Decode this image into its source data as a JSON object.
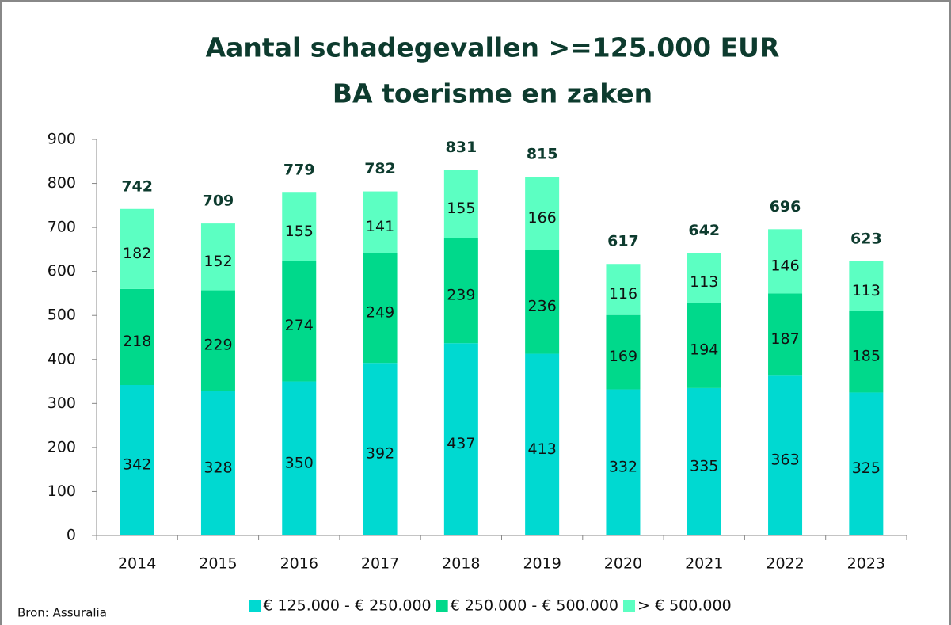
{
  "chart_data": {
    "type": "stacked_bar",
    "title": "Aantal schadegevallen >=125.000 EUR",
    "subtitle": "BA toerisme en zaken",
    "source": "Bron: Assuralia",
    "categories": [
      "2014",
      "2015",
      "2016",
      "2017",
      "2018",
      "2019",
      "2020",
      "2021",
      "2022",
      "2023"
    ],
    "series": [
      {
        "name": "€ 125.000 - € 250.000",
        "color": "#00d9d1",
        "values": [
          342,
          328,
          350,
          392,
          437,
          413,
          332,
          335,
          363,
          325
        ]
      },
      {
        "name": "€ 250.000 - € 500.000",
        "color": "#00d98b",
        "values": [
          218,
          229,
          274,
          249,
          239,
          236,
          169,
          194,
          187,
          185
        ]
      },
      {
        "name": "> € 500.000",
        "color": "#5cffc2",
        "values": [
          182,
          152,
          155,
          141,
          155,
          166,
          116,
          113,
          146,
          113
        ]
      }
    ],
    "totals": [
      742,
      709,
      779,
      782,
      831,
      815,
      617,
      642,
      696,
      623
    ],
    "ylim": [
      0,
      900
    ],
    "yticks": [
      0,
      100,
      200,
      300,
      400,
      500,
      600,
      700,
      800,
      900
    ],
    "legend": "bottom"
  }
}
